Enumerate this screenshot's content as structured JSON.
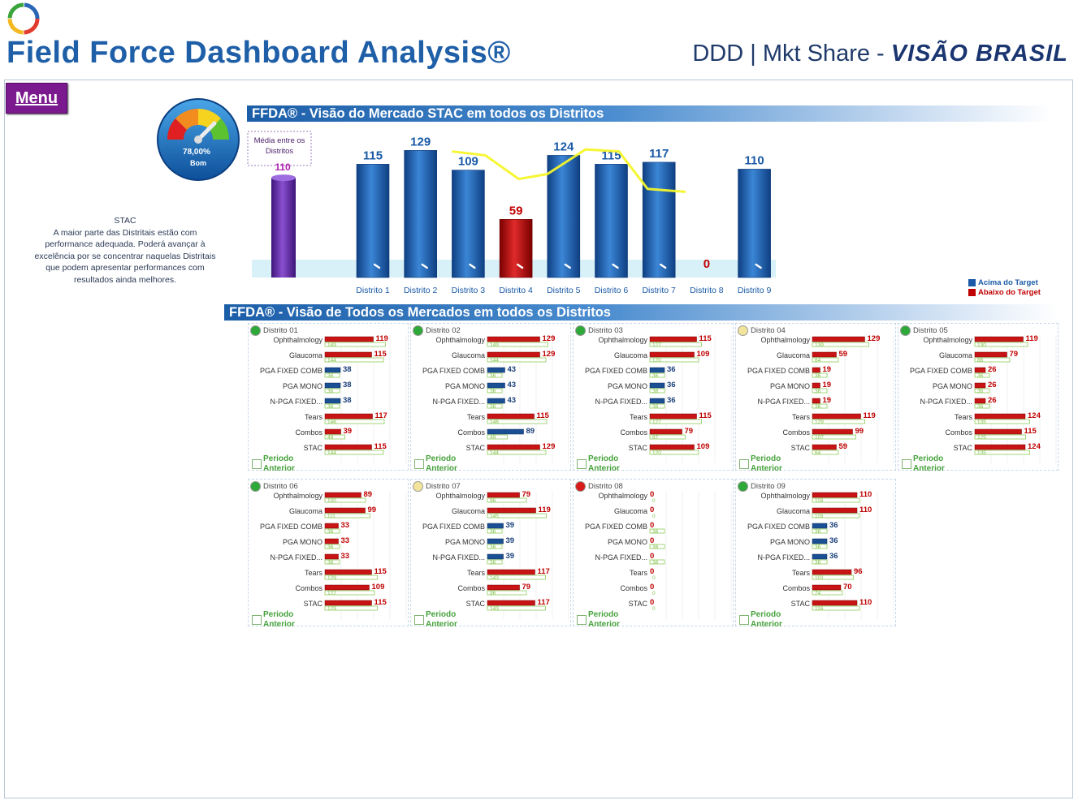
{
  "header": {
    "title": "Field Force Dashboard Analysis®",
    "subtitle_prefix": "DDD | Mkt Share - ",
    "subtitle_brand": "VISÃO BRASIL"
  },
  "menu": {
    "label": "Menu"
  },
  "gauge": {
    "percent": "78,00%",
    "status": "Bom",
    "value": 0.78
  },
  "stac_note": {
    "heading": "STAC",
    "text": "A maior parte das Distritais estão com performance adequada. Poderá avançar à excelência por se concentrar naquelas Distritais que podem apresentar performances com resultados ainda melhores."
  },
  "section1": {
    "title": "FFDA® - Visão do Mercado STAC em todos os Distritos"
  },
  "section2": {
    "title": "FFDA® - Visão de Todos os Mercados  em todos os Distritos"
  },
  "chart_data": {
    "type": "bar",
    "title": "FFDA® - Visão do Mercado STAC em todos os Distritos",
    "average": {
      "label_line1": "Média entre os",
      "label_line2": "Distritos",
      "value": 110
    },
    "categories": [
      "Distrito 1",
      "Distrito 2",
      "Distrito 3",
      "Distrito 4",
      "Distrito 5",
      "Distrito 6",
      "Distrito 7",
      "Distrito 8",
      "Distrito 9"
    ],
    "values": [
      115,
      129,
      109,
      59,
      124,
      115,
      117,
      0,
      110
    ],
    "status": [
      "above",
      "above",
      "above",
      "below",
      "above",
      "above",
      "above",
      "below",
      "above"
    ],
    "trend_line": [
      null,
      128,
      124,
      100,
      105,
      130,
      128,
      90,
      88,
      87
    ],
    "trend_x": [
      1.7,
      2.0,
      2.7,
      3.4,
      4.0,
      4.8,
      5.5,
      6.1,
      6.6,
      6.9
    ],
    "ylim": [
      0,
      140
    ],
    "colors": {
      "above": "#1a5aa6",
      "below": "#c00000",
      "average": "#6a2fa8",
      "trend": "#f5f52a"
    },
    "legend": [
      {
        "label": "Acima do Target",
        "color": "#1a5aa6"
      },
      {
        "label": "Abaixo do Target",
        "color": "#c00000"
      }
    ]
  },
  "markets": [
    "Ophthalmology",
    "Glaucoma",
    "PGA FIXED COMB",
    "PGA MONO",
    "N-PGA FIXED...",
    "Tears",
    "Combos",
    "STAC"
  ],
  "periodo_label": {
    "line1": "Periodo",
    "line2": "Anterior"
  },
  "districts": [
    {
      "name": "Distrito 01",
      "status": "#2fa83a",
      "current": [
        119,
        115,
        38,
        38,
        38,
        117,
        39,
        115
      ],
      "previous": [
        149,
        144,
        36,
        36,
        36,
        146,
        49,
        144
      ]
    },
    {
      "name": "Distrito 02",
      "status": "#2fa83a",
      "current": [
        129,
        129,
        43,
        43,
        43,
        115,
        89,
        129
      ],
      "previous": [
        149,
        144,
        36,
        36,
        36,
        146,
        49,
        144
      ]
    },
    {
      "name": "Distrito 03",
      "status": "#2fa83a",
      "current": [
        115,
        109,
        36,
        36,
        36,
        115,
        79,
        109
      ],
      "previous": [
        127,
        120,
        36,
        36,
        36,
        127,
        87,
        120
      ]
    },
    {
      "name": "Distrito 04",
      "status": "#f2e49a",
      "current": [
        129,
        59,
        19,
        19,
        19,
        119,
        99,
        59
      ],
      "previous": [
        139,
        64,
        36,
        36,
        36,
        129,
        107,
        64
      ]
    },
    {
      "name": "Distrito 05",
      "status": "#2fa83a",
      "current": [
        119,
        79,
        26,
        26,
        26,
        124,
        115,
        124
      ],
      "previous": [
        130,
        86,
        36,
        36,
        36,
        135,
        125,
        135
      ]
    },
    {
      "name": "Distrito 06",
      "status": "#2fa83a",
      "current": [
        89,
        99,
        33,
        33,
        33,
        115,
        109,
        115
      ],
      "previous": [
        100,
        111,
        36,
        36,
        36,
        129,
        122,
        129
      ]
    },
    {
      "name": "Distrito 07",
      "status": "#f2e49a",
      "current": [
        79,
        119,
        39,
        39,
        39,
        117,
        79,
        117
      ],
      "previous": [
        96,
        145,
        36,
        36,
        36,
        143,
        96,
        143
      ]
    },
    {
      "name": "Distrito 08",
      "status": "#d81a1a",
      "current": [
        0,
        0,
        0,
        0,
        0,
        0,
        0,
        0
      ],
      "previous": [
        0,
        0,
        36,
        36,
        36,
        0,
        0,
        0
      ]
    },
    {
      "name": "Distrito 09",
      "status": "#2fa83a",
      "current": [
        110,
        110,
        36,
        36,
        36,
        96,
        70,
        110
      ],
      "previous": [
        116,
        116,
        36,
        36,
        36,
        101,
        74,
        116
      ]
    }
  ]
}
